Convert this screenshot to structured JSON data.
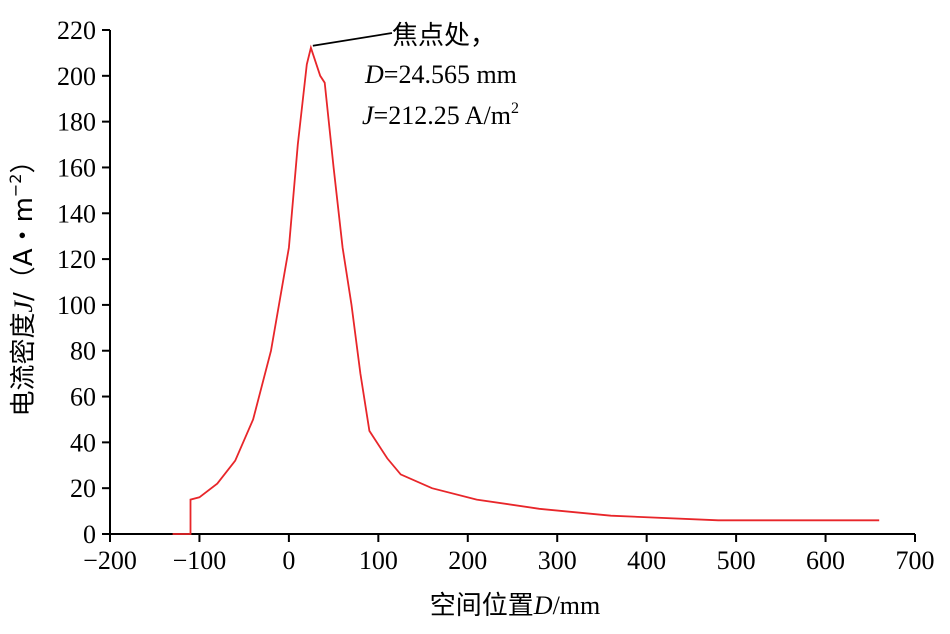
{
  "chart_data": {
    "type": "line",
    "title": "",
    "xlabel": {
      "prefix": "空间位置",
      "var": "D",
      "suffix": "/mm"
    },
    "ylabel": {
      "prefix": "电流密度",
      "var": "J",
      "suffix": "/（A・m",
      "sup": "−2",
      "end": "）"
    },
    "xlim": [
      -200,
      700
    ],
    "ylim": [
      0,
      220
    ],
    "xticks": [
      -200,
      -100,
      0,
      100,
      200,
      300,
      400,
      500,
      600,
      700
    ],
    "yticks": [
      0,
      20,
      40,
      60,
      80,
      100,
      120,
      140,
      160,
      180,
      200,
      220
    ],
    "xtick_labels": [
      "−200",
      "−100",
      "0",
      "100",
      "200",
      "300",
      "400",
      "500",
      "600",
      "700"
    ],
    "ytick_labels": [
      "0",
      "20",
      "40",
      "60",
      "80",
      "100",
      "120",
      "140",
      "160",
      "180",
      "200",
      "220"
    ],
    "grid": false,
    "line_color": "#e8262a",
    "series": [
      {
        "x": [
          -130,
          -110,
          -110,
          -100,
          -80,
          -60,
          -40,
          -20,
          0,
          10,
          20,
          24.565,
          35,
          40,
          50,
          60,
          70,
          80,
          90,
          110,
          125,
          160,
          210,
          280,
          360,
          480,
          560,
          660
        ],
        "y": [
          0,
          0,
          15,
          16,
          22,
          32,
          50,
          80,
          125,
          170,
          205,
          212.25,
          200,
          197,
          160,
          125,
          100,
          70,
          45,
          33,
          26,
          20,
          15,
          11,
          8,
          6,
          6,
          6
        ]
      }
    ],
    "annotation": {
      "line1": "焦点处，",
      "line2_var": "D",
      "line2_rest": "=24.565 mm",
      "line3_var": "J",
      "line3_rest": "=212.25 A/m",
      "line3_sup": "2",
      "point_x": 24.565,
      "point_y": 212.25
    }
  }
}
